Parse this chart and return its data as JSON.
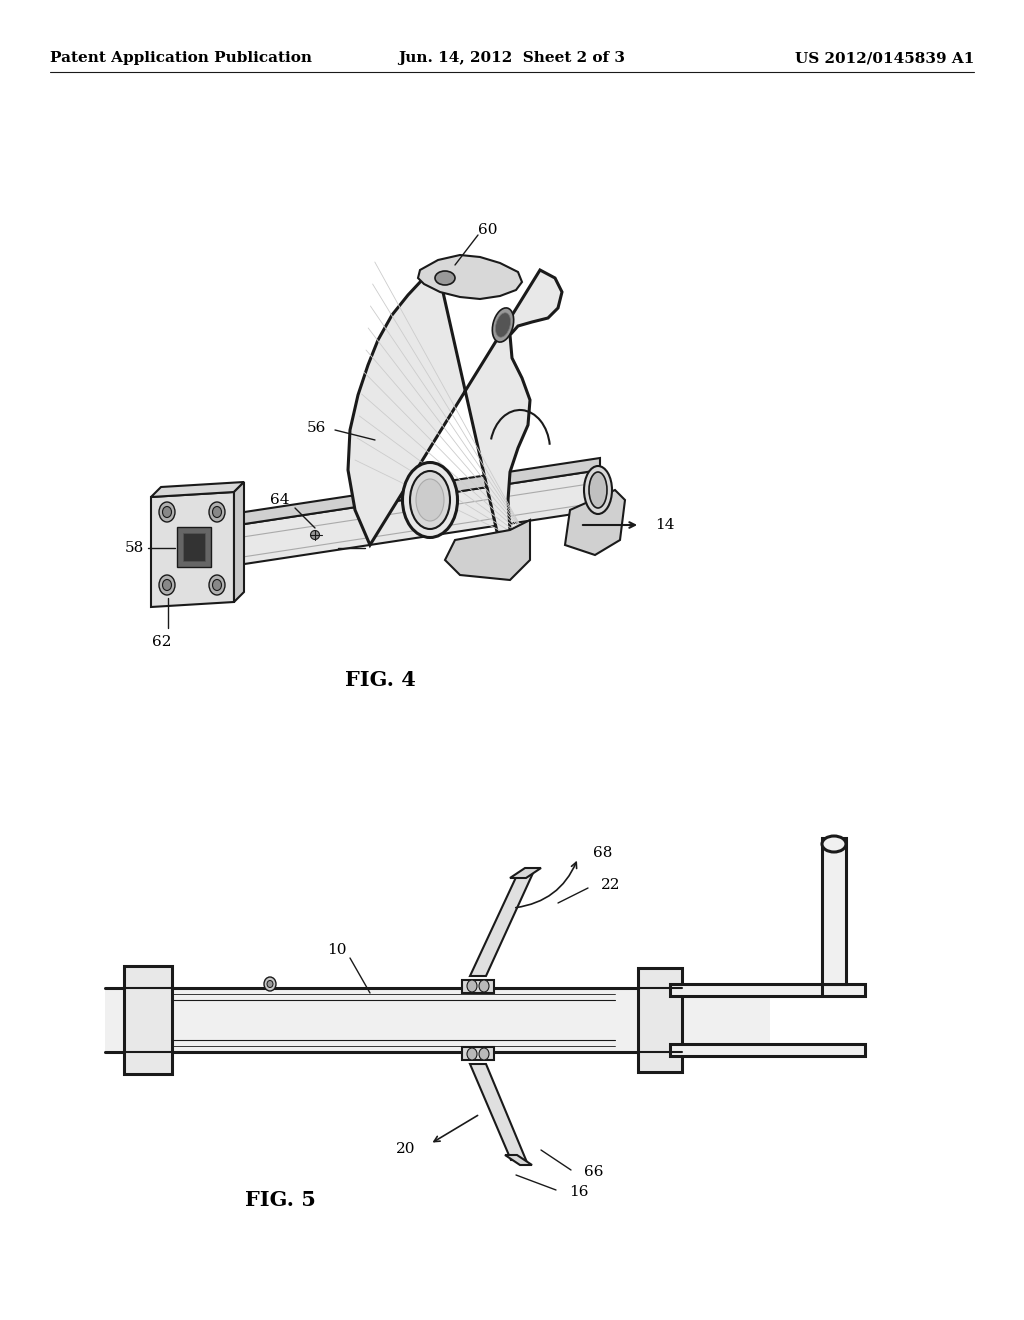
{
  "bg_color": "#ffffff",
  "header_left": "Patent Application Publication",
  "header_mid": "Jun. 14, 2012  Sheet 2 of 3",
  "header_right": "US 2012/0145839 A1",
  "fig4_label": "FIG. 4",
  "fig5_label": "FIG. 5",
  "line_color": "#1a1a1a",
  "text_color": "#000000",
  "header_fontsize": 11,
  "label_fontsize": 11,
  "fig_label_fontsize": 15
}
